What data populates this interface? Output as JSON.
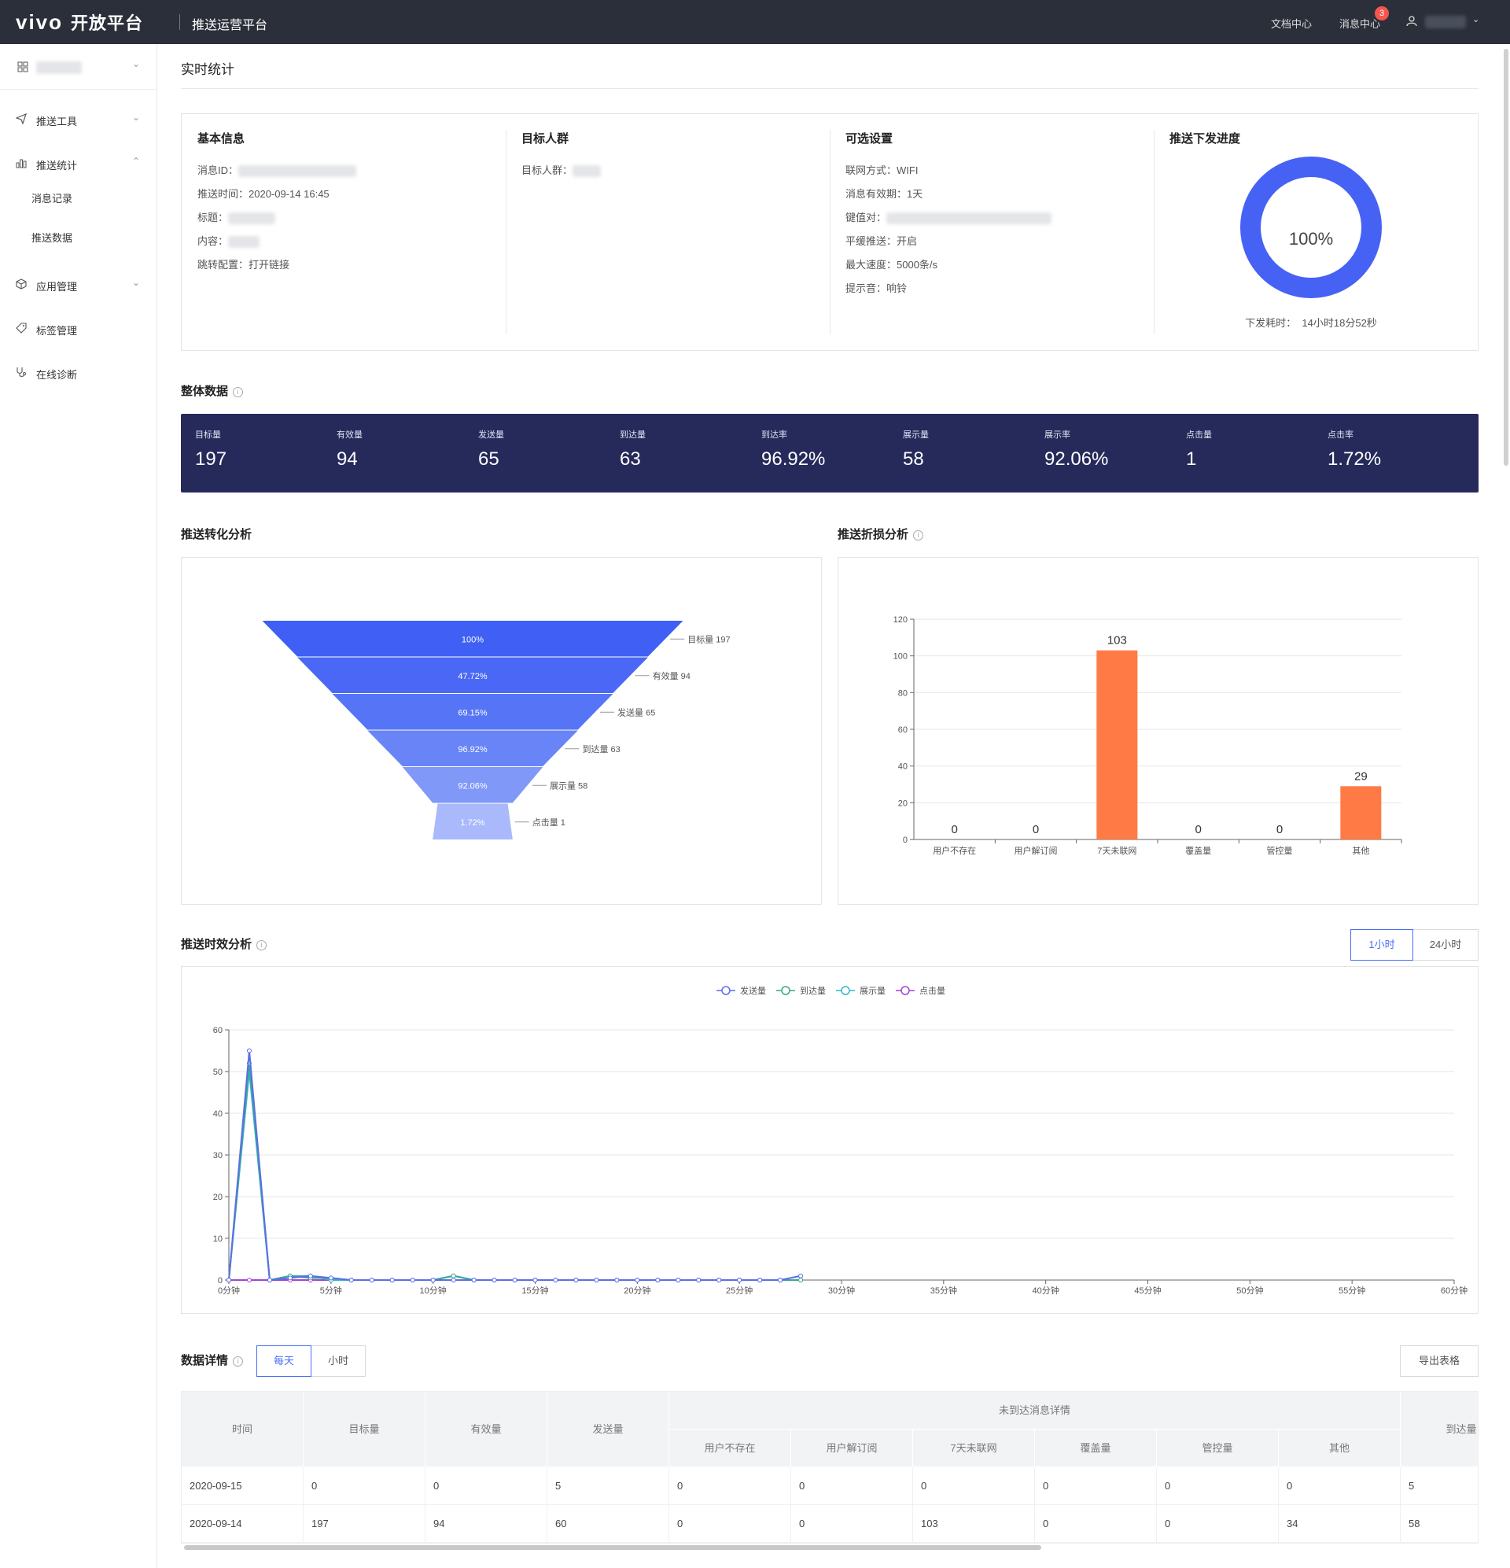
{
  "header": {
    "brand": "vivo",
    "brand_sub": "开放平台",
    "product": "推送运营平台",
    "links": [
      "文档中心",
      "消息中心"
    ],
    "message_badge": "3"
  },
  "sidebar": {
    "items": [
      {
        "label": "推送工具",
        "icon": "paper-plane-icon"
      },
      {
        "label": "推送统计",
        "icon": "bar-chart-icon"
      },
      {
        "label": "应用管理",
        "icon": "cube-icon"
      },
      {
        "label": "标签管理",
        "icon": "tag-icon"
      },
      {
        "label": "在线诊断",
        "icon": "stethoscope-icon"
      }
    ],
    "sub_items": [
      "消息记录",
      "推送数据"
    ]
  },
  "page": {
    "title": "实时统计"
  },
  "basic_info": {
    "title": "基本信息",
    "msg_id_label": "消息ID：",
    "push_time_label": "推送时间：",
    "push_time": "2020-09-14 16:45",
    "subject_label": "标题：",
    "content_label": "内容：",
    "jump_label": "跳转配置：",
    "jump": "打开链接"
  },
  "audience": {
    "title": "目标人群",
    "label": "目标人群："
  },
  "options": {
    "title": "可选设置",
    "network_label": "联网方式：",
    "network": "WIFI",
    "validity_label": "消息有效期：",
    "validity": "1天",
    "kv_label": "键值对：",
    "smooth_label": "平缓推送：",
    "smooth": "开启",
    "speed_label": "最大速度：",
    "speed": "5000条/s",
    "sound_label": "提示音：",
    "sound": "响铃"
  },
  "progress": {
    "title": "推送下发进度",
    "value": 1.0,
    "percent_label": "100%",
    "duration_label": "下发耗时：",
    "duration": "14小时18分52秒",
    "color": "#4662f5"
  },
  "overall": {
    "title": "整体数据",
    "stats": [
      {
        "label": "目标量",
        "value": "197"
      },
      {
        "label": "有效量",
        "value": "94"
      },
      {
        "label": "发送量",
        "value": "65"
      },
      {
        "label": "到达量",
        "value": "63"
      },
      {
        "label": "到达率",
        "value": "96.92%"
      },
      {
        "label": "展示量",
        "value": "58"
      },
      {
        "label": "展示率",
        "value": "92.06%"
      },
      {
        "label": "点击量",
        "value": "1"
      },
      {
        "label": "点击率",
        "value": "1.72%"
      }
    ]
  },
  "funnel_title": "推送转化分析",
  "loss_title": "推送折损分析",
  "timing": {
    "title": "推送时效分析",
    "toggle": [
      "1小时",
      "24小时"
    ]
  },
  "details": {
    "title": "数据详情",
    "toggle": [
      "每天",
      "小时"
    ],
    "export": "导出表格",
    "group_header": "未到达消息详情",
    "columns": [
      "时间",
      "目标量",
      "有效量",
      "发送量",
      "用户不存在",
      "用户解订阅",
      "7天未联网",
      "覆盖量",
      "管控量",
      "其他",
      "到达量"
    ],
    "rows": [
      [
        "2020-09-15",
        "0",
        "0",
        "5",
        "0",
        "0",
        "0",
        "0",
        "0",
        "0",
        "5"
      ],
      [
        "2020-09-14",
        "197",
        "94",
        "60",
        "0",
        "0",
        "103",
        "0",
        "0",
        "34",
        "58"
      ]
    ]
  },
  "chart_data": [
    {
      "type": "funnel",
      "categories": [
        "目标量",
        "有效量",
        "发送量",
        "到达量",
        "展示量",
        "点击量"
      ],
      "values": [
        197,
        94,
        65,
        63,
        58,
        1
      ],
      "percent_labels": [
        "100%",
        "47.72%",
        "69.15%",
        "96.92%",
        "92.06%",
        "1.72%"
      ],
      "colors": [
        "#3f5ff5",
        "#4a68f5",
        "#5675f6",
        "#6884f7",
        "#8098f8",
        "#a9b9fb"
      ]
    },
    {
      "type": "bar",
      "categories": [
        "用户不存在",
        "用户解订阅",
        "7天未联网",
        "覆盖量",
        "管控量",
        "其他"
      ],
      "values": [
        0,
        0,
        103,
        0,
        0,
        29
      ],
      "ylim": [
        0,
        120
      ],
      "yticks": [
        0,
        20,
        40,
        60,
        80,
        100,
        120
      ],
      "color": "#ff7a45",
      "grid": true
    },
    {
      "type": "line",
      "x_labels": [
        "0分钟",
        "5分钟",
        "10分钟",
        "15分钟",
        "20分钟",
        "25分钟",
        "30分钟",
        "35分钟",
        "40分钟",
        "45分钟",
        "50分钟",
        "55分钟",
        "60分钟"
      ],
      "x_max": 60,
      "ylim": [
        0,
        60
      ],
      "yticks": [
        0,
        10,
        20,
        30,
        40,
        50,
        60
      ],
      "legend_position": "top-center",
      "series": [
        {
          "name": "发送量",
          "color": "#5b6ee8",
          "x": [
            0,
            1,
            2,
            3,
            4,
            5,
            6,
            7,
            8,
            9,
            10,
            11,
            12,
            13,
            14,
            15,
            16,
            17,
            18,
            19,
            20,
            21,
            22,
            23,
            24,
            25,
            26,
            27,
            28
          ],
          "y": [
            0,
            55,
            0,
            0.5,
            1,
            0.5,
            0,
            0,
            0,
            0,
            0,
            0,
            0,
            0,
            0,
            0,
            0,
            0,
            0,
            0,
            0,
            0,
            0,
            0,
            0,
            0,
            0,
            0,
            1
          ]
        },
        {
          "name": "到达量",
          "color": "#3aa88c",
          "x": [
            0,
            1,
            2,
            3,
            4,
            5,
            6,
            7,
            8,
            9,
            10,
            11,
            12,
            13,
            14,
            15,
            16,
            17,
            18,
            19,
            20,
            21,
            22,
            23,
            24,
            25,
            26,
            27,
            28
          ],
          "y": [
            0,
            52,
            0,
            1,
            0.5,
            0.5,
            0,
            0,
            0,
            0,
            0,
            1,
            0,
            0,
            0,
            0,
            0,
            0,
            0,
            0,
            0,
            0,
            0,
            0,
            0,
            0,
            0,
            0,
            0
          ]
        },
        {
          "name": "展示量",
          "color": "#36b7c9",
          "x": [
            0,
            1,
            2,
            3,
            4,
            5,
            6,
            7,
            8,
            9,
            10,
            11,
            12,
            13,
            14,
            15,
            16,
            17,
            18,
            19,
            20,
            21,
            22,
            23,
            24,
            25,
            26,
            27,
            28
          ],
          "y": [
            0,
            50,
            0,
            1,
            1,
            0,
            0,
            0,
            0,
            0,
            0,
            1,
            0,
            0,
            0,
            0,
            0,
            0,
            0,
            0,
            0,
            0,
            0,
            0,
            0,
            0,
            0,
            0,
            0
          ]
        },
        {
          "name": "点击量",
          "color": "#a444d4",
          "x": [
            0,
            1,
            2,
            3,
            4,
            5,
            6,
            7,
            8,
            9,
            10,
            11,
            12,
            13,
            14,
            15,
            16,
            17,
            18,
            19,
            20,
            21,
            22,
            23,
            24,
            25,
            26,
            27,
            28
          ],
          "y": [
            0,
            0,
            0,
            0,
            0,
            0,
            0,
            0,
            0,
            0,
            0,
            0,
            0,
            0,
            0,
            0,
            0,
            0,
            0,
            0,
            0,
            0,
            0,
            0,
            0,
            0,
            0,
            0,
            0
          ]
        }
      ]
    }
  ]
}
